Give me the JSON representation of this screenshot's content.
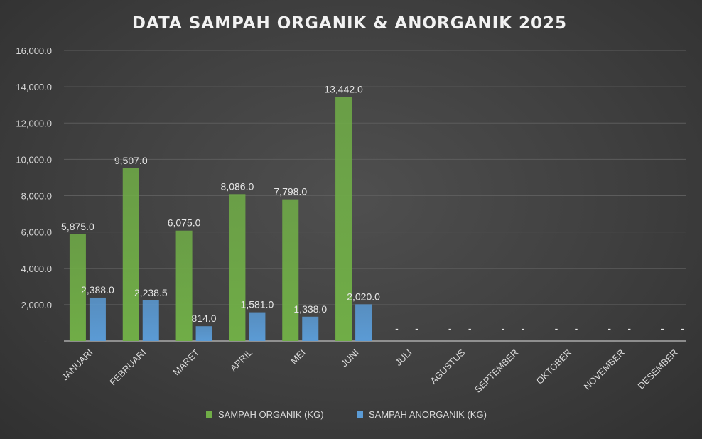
{
  "chart_data": {
    "type": "bar",
    "title": "DATA SAMPAH ORGANIK & ANORGANIK 2025",
    "categories": [
      "JANUARI",
      "FEBRUARI",
      "MARET",
      "APRIL",
      "MEI",
      "JUNI",
      "JULI",
      "AGUSTUS",
      "SEPTEMBER",
      "OKTOBER",
      "NOVEMBER",
      "DESEMBER"
    ],
    "series": [
      {
        "name": "SAMPAH ORGANIK (KG)",
        "color": "#70ad47",
        "values": [
          5875.0,
          9507.0,
          6075.0,
          8086.0,
          7798.0,
          13442.0,
          0,
          0,
          0,
          0,
          0,
          0
        ],
        "labels": [
          "5,875.0",
          "9,507.0",
          "6,075.0",
          "8,086.0",
          "7,798.0",
          "13,442.0",
          "-",
          "-",
          "-",
          "-",
          "-",
          "-"
        ]
      },
      {
        "name": "SAMPAH ANORGANIK (KG)",
        "color": "#5b9bd5",
        "values": [
          2388.0,
          2238.5,
          814.0,
          1581.0,
          1338.0,
          2020.0,
          0,
          0,
          0,
          0,
          0,
          0
        ],
        "labels": [
          "2,388.0",
          "2,238.5",
          "814.0",
          "1,581.0",
          "1,338.0",
          "2,020.0",
          "-",
          "-",
          "-",
          "-",
          "-",
          "-"
        ]
      }
    ],
    "ylim": [
      0,
      16000
    ],
    "yticks": [
      0,
      2000,
      4000,
      6000,
      8000,
      10000,
      12000,
      14000,
      16000
    ],
    "ytick_labels": [
      "-",
      "2,000.0",
      "4,000.0",
      "6,000.0",
      "8,000.0",
      "10,000.0",
      "12,000.0",
      "14,000.0",
      "16,000.0"
    ],
    "grid": true,
    "legend_position": "bottom"
  }
}
